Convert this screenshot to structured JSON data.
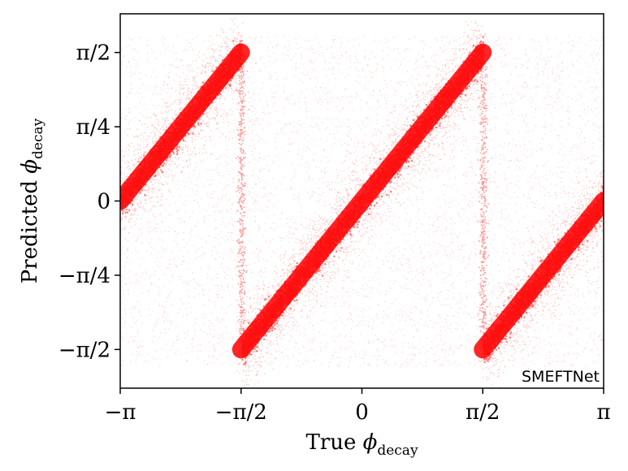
{
  "chart_data": {
    "type": "scatter",
    "title": "",
    "xlabel": {
      "main": "True ",
      "symbol": "ϕ",
      "sub": "decay"
    },
    "ylabel": {
      "main": "Predicted ",
      "symbol": "ϕ",
      "sub": "decay"
    },
    "xlim": [
      -3.1416,
      3.1416
    ],
    "ylim": [
      -1.98,
      1.98
    ],
    "xticks": [
      {
        "value": -3.1416,
        "label": "−π"
      },
      {
        "value": -1.5708,
        "label": "−π/2"
      },
      {
        "value": 0,
        "label": "0"
      },
      {
        "value": 1.5708,
        "label": "π/2"
      },
      {
        "value": 3.1416,
        "label": "π"
      }
    ],
    "yticks": [
      {
        "value": 1.5708,
        "label": "π/2"
      },
      {
        "value": 0.7854,
        "label": "π/4"
      },
      {
        "value": 0,
        "label": "0"
      },
      {
        "value": -0.7854,
        "label": "−π/4"
      },
      {
        "value": -1.5708,
        "label": "−π/2"
      }
    ],
    "grid": false,
    "series": [
      {
        "color": "#ff0000",
        "bands": [
          {
            "x": [
              -3.1416,
              -1.5708
            ],
            "y": [
              0.0,
              1.5708
            ]
          },
          {
            "x": [
              -1.5708,
              1.5708
            ],
            "y": [
              -1.5708,
              1.5708
            ]
          },
          {
            "x": [
              1.5708,
              3.1416
            ],
            "y": [
              -1.5708,
              0.0
            ]
          }
        ],
        "vertical_traces_x": [
          -1.5708,
          1.5708
        ]
      }
    ],
    "annotation": "SMEFTNet"
  }
}
